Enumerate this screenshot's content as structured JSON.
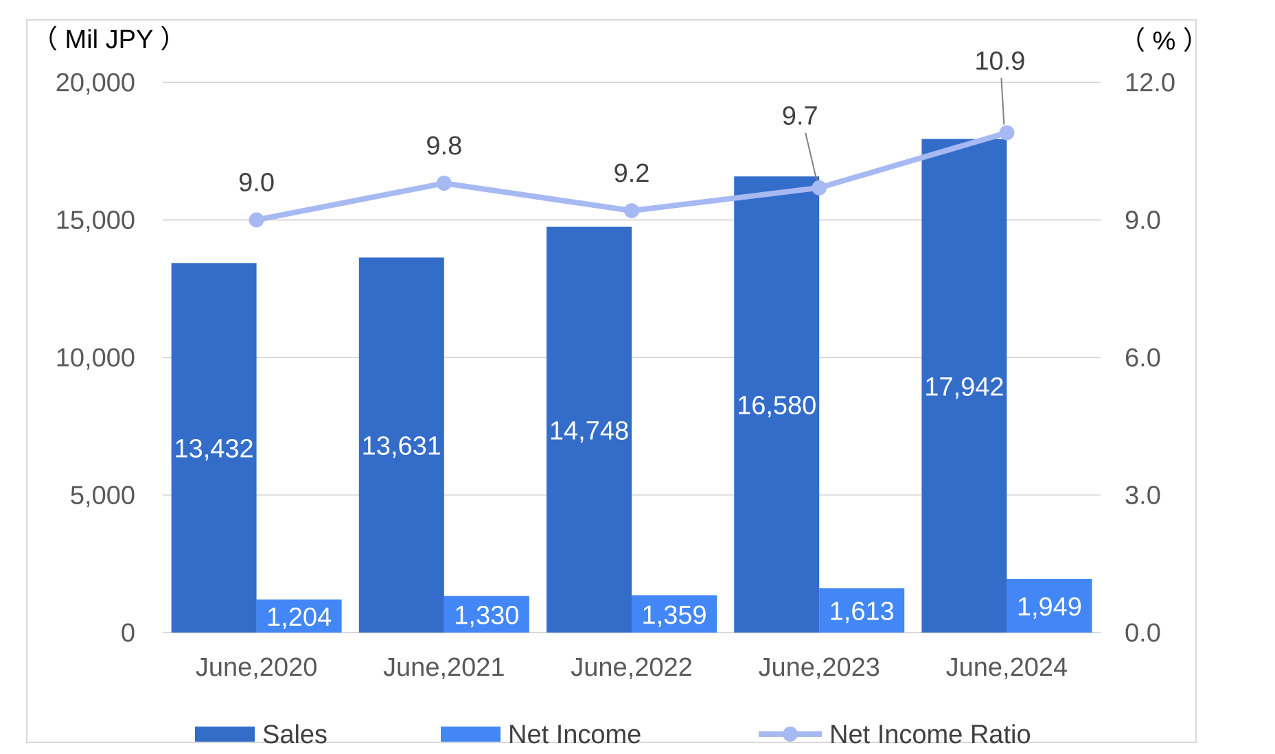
{
  "chart_data": {
    "type": "bar",
    "categories": [
      "June,2020",
      "June,2021",
      "June,2022",
      "June,2023",
      "June,2024"
    ],
    "series": [
      {
        "name": "Sales",
        "kind": "bar",
        "axis": "left",
        "color": "#346dc9",
        "values": [
          13432,
          13631,
          14748,
          16580,
          17942
        ],
        "labels": [
          "13,432",
          "13,631",
          "14,748",
          "16,580",
          "17,942"
        ]
      },
      {
        "name": "Net Income",
        "kind": "bar",
        "axis": "left",
        "color": "#4287f5",
        "values": [
          1204,
          1330,
          1359,
          1613,
          1949
        ],
        "labels": [
          "1,204",
          "1,330",
          "1,359",
          "1,613",
          "1,949"
        ]
      },
      {
        "name": "Net Income Ratio",
        "kind": "line",
        "axis": "right",
        "color": "#a7b9f2",
        "values": [
          9.0,
          9.8,
          9.2,
          9.7,
          10.9
        ],
        "labels": [
          "9.0",
          "9.8",
          "9.2",
          "9.7",
          "10.9"
        ]
      }
    ],
    "left_axis": {
      "unit_label": "（ Mil JPY ）",
      "ylim": [
        0,
        20000
      ],
      "ticks": [
        "0",
        "5,000",
        "10,000",
        "15,000",
        "20,000"
      ]
    },
    "right_axis": {
      "unit_label": "（ % ）",
      "ylim": [
        0,
        12
      ],
      "ticks": [
        "0.0",
        "3.0",
        "6.0",
        "9.0",
        "12.0"
      ]
    },
    "grid": true,
    "legend_position": "bottom"
  }
}
